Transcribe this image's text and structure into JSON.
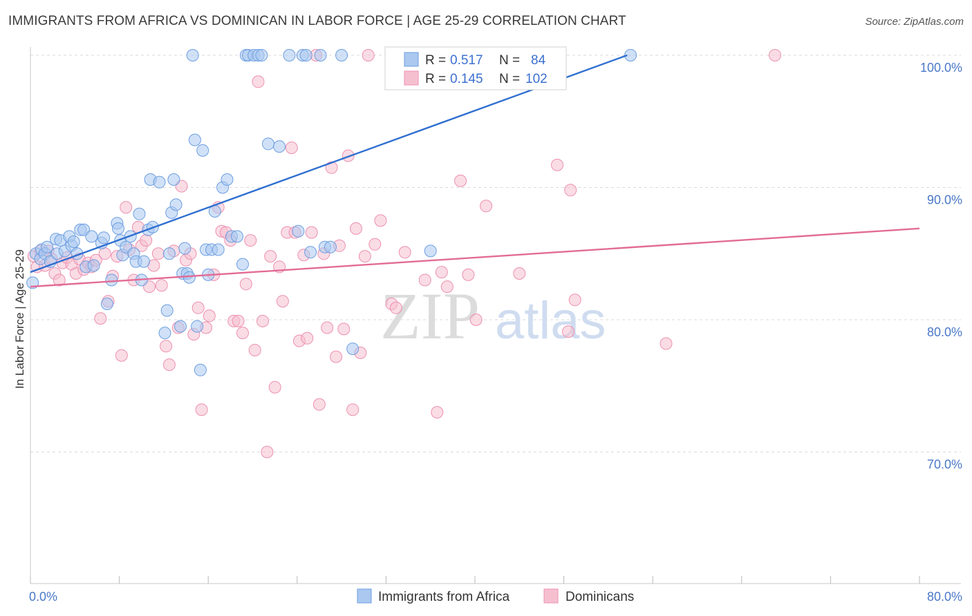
{
  "header": {
    "title": "IMMIGRANTS FROM AFRICA VS DOMINICAN IN LABOR FORCE | AGE 25-29 CORRELATION CHART",
    "source": "Source: ZipAtlas.com"
  },
  "watermark": {
    "zip": "ZIP",
    "atlas": "atlas"
  },
  "colors": {
    "blue_fill": "#aac8f0",
    "blue_stroke": "#6d9ee0",
    "blue_line": "#2f6fd0",
    "pink_fill": "#f6bfd0",
    "pink_stroke": "#ec90b0",
    "pink_line": "#e26c96",
    "tick_text": "#4a78c8",
    "grid": "#d9d9d9"
  },
  "legend": {
    "rows": [
      {
        "r_label": "R = ",
        "r_value": "0.517",
        "n_label": "N = ",
        "n_value": "84"
      },
      {
        "r_label": "R = ",
        "r_value": "0.145",
        "n_label": "N = ",
        "n_value": "102"
      }
    ]
  },
  "chart_data": {
    "type": "scatter",
    "xlabel": "",
    "ylabel": "In Labor Force | Age 25-29",
    "xlim": [
      0,
      80
    ],
    "ylim": [
      60.5,
      101.5
    ],
    "x_tick_labels": [
      "0.0%",
      "80.0%"
    ],
    "y_ticks": [
      70,
      80,
      90,
      100
    ],
    "y_tick_labels": [
      "70.0%",
      "80.0%",
      "90.0%",
      "100.0%"
    ],
    "grid": true,
    "legend_position": "top-center",
    "series": [
      {
        "name": "Immigrants from Africa",
        "color": "blue",
        "r": 0.517,
        "n": 84,
        "trend": {
          "x": [
            0,
            53.7
          ],
          "y": [
            83.6,
            100.0
          ]
        },
        "points": [
          [
            0.2,
            82.8
          ],
          [
            0.5,
            85
          ],
          [
            0.9,
            84.6
          ],
          [
            1.0,
            85.3
          ],
          [
            1.3,
            85.0
          ],
          [
            1.5,
            85.5
          ],
          [
            1.8,
            84.4
          ],
          [
            2.3,
            86.1
          ],
          [
            2.4,
            85.0
          ],
          [
            2.7,
            86.0
          ],
          [
            3.1,
            85.2
          ],
          [
            3.5,
            86.3
          ],
          [
            3.7,
            85.6
          ],
          [
            3.9,
            85.9
          ],
          [
            4.2,
            85.0
          ],
          [
            4.5,
            86.8
          ],
          [
            4.8,
            86.8
          ],
          [
            5.0,
            84.0
          ],
          [
            5.5,
            86.3
          ],
          [
            5.7,
            84.1
          ],
          [
            6.4,
            85.8
          ],
          [
            6.6,
            86.2
          ],
          [
            6.9,
            81.2
          ],
          [
            7.3,
            83.0
          ],
          [
            7.8,
            87.3
          ],
          [
            7.9,
            86.9
          ],
          [
            8.1,
            86.0
          ],
          [
            8.3,
            84.9
          ],
          [
            8.6,
            85.5
          ],
          [
            9.0,
            86.3
          ],
          [
            9.3,
            85.0
          ],
          [
            9.5,
            84.4
          ],
          [
            9.8,
            88.0
          ],
          [
            10.0,
            83.0
          ],
          [
            10.2,
            84.4
          ],
          [
            10.6,
            86.8
          ],
          [
            10.8,
            90.6
          ],
          [
            11.0,
            87.0
          ],
          [
            11.6,
            90.4
          ],
          [
            12.1,
            79.0
          ],
          [
            12.3,
            80.7
          ],
          [
            12.5,
            85.0
          ],
          [
            12.7,
            88.1
          ],
          [
            12.9,
            90.6
          ],
          [
            13.1,
            88.7
          ],
          [
            13.5,
            79.5
          ],
          [
            13.7,
            83.5
          ],
          [
            13.9,
            85.4
          ],
          [
            14.1,
            83.5
          ],
          [
            14.3,
            83.2
          ],
          [
            14.6,
            100
          ],
          [
            14.8,
            93.6
          ],
          [
            15.0,
            79.5
          ],
          [
            15.3,
            76.2
          ],
          [
            15.5,
            92.8
          ],
          [
            15.8,
            85.3
          ],
          [
            16.0,
            83.4
          ],
          [
            16.3,
            85.3
          ],
          [
            16.6,
            88.2
          ],
          [
            16.9,
            85.3
          ],
          [
            17.3,
            90.0
          ],
          [
            17.7,
            90.6
          ],
          [
            18.1,
            86.3
          ],
          [
            18.6,
            86.3
          ],
          [
            19.1,
            84.2
          ],
          [
            19.4,
            100
          ],
          [
            19.6,
            100
          ],
          [
            20.1,
            100
          ],
          [
            20.5,
            100
          ],
          [
            20.8,
            100
          ],
          [
            21.4,
            93.3
          ],
          [
            22.4,
            93.1
          ],
          [
            23.3,
            100
          ],
          [
            24.1,
            86.7
          ],
          [
            24.5,
            100
          ],
          [
            24.8,
            100
          ],
          [
            25.2,
            85.1
          ],
          [
            26.1,
            100
          ],
          [
            26.5,
            85.5
          ],
          [
            27.0,
            85.5
          ],
          [
            28.0,
            100
          ],
          [
            29.0,
            77.8
          ],
          [
            36.0,
            85.2
          ],
          [
            54.0,
            100
          ]
        ]
      },
      {
        "name": "Dominicans",
        "color": "pink",
        "r": 0.145,
        "n": 102,
        "trend": {
          "x": [
            0,
            80
          ],
          "y": [
            82.5,
            86.9
          ]
        },
        "points": [
          [
            0.3,
            84.8
          ],
          [
            0.6,
            84.0
          ],
          [
            0.9,
            85.2
          ],
          [
            1.3,
            84.1
          ],
          [
            1.6,
            85.2
          ],
          [
            1.9,
            84.6
          ],
          [
            2.2,
            83.5
          ],
          [
            2.6,
            83.0
          ],
          [
            2.9,
            84.3
          ],
          [
            3.3,
            84.7
          ],
          [
            3.7,
            84.2
          ],
          [
            4.1,
            83.5
          ],
          [
            4.4,
            84.6
          ],
          [
            4.8,
            83.8
          ],
          [
            5.2,
            84.3
          ],
          [
            5.5,
            84.0
          ],
          [
            5.9,
            84.5
          ],
          [
            6.3,
            80.1
          ],
          [
            6.7,
            85.0
          ],
          [
            7.0,
            81.4
          ],
          [
            7.4,
            83.3
          ],
          [
            7.8,
            84.8
          ],
          [
            8.2,
            77.3
          ],
          [
            8.6,
            88.5
          ],
          [
            8.9,
            85.3
          ],
          [
            9.3,
            83.0
          ],
          [
            9.7,
            87.0
          ],
          [
            10.0,
            85.6
          ],
          [
            10.4,
            86.0
          ],
          [
            10.7,
            82.5
          ],
          [
            11.1,
            84.1
          ],
          [
            11.5,
            85.0
          ],
          [
            11.8,
            82.6
          ],
          [
            12.2,
            78.0
          ],
          [
            12.5,
            76.6
          ],
          [
            12.9,
            85.2
          ],
          [
            13.3,
            79.4
          ],
          [
            13.6,
            90.1
          ],
          [
            14.0,
            84.5
          ],
          [
            14.4,
            85.0
          ],
          [
            14.7,
            78.9
          ],
          [
            15.1,
            80.9
          ],
          [
            15.4,
            73.2
          ],
          [
            15.8,
            79.4
          ],
          [
            16.1,
            80.3
          ],
          [
            16.5,
            83.4
          ],
          [
            16.9,
            88.5
          ],
          [
            17.2,
            86.7
          ],
          [
            17.6,
            86.6
          ],
          [
            18.0,
            86.0
          ],
          [
            18.3,
            79.9
          ],
          [
            18.7,
            79.9
          ],
          [
            19.1,
            79.0
          ],
          [
            19.4,
            82.7
          ],
          [
            19.8,
            86.0
          ],
          [
            20.2,
            77.7
          ],
          [
            20.5,
            98.0
          ],
          [
            20.9,
            79.9
          ],
          [
            21.3,
            70.0
          ],
          [
            21.6,
            84.8
          ],
          [
            22.0,
            74.9
          ],
          [
            22.4,
            84.0
          ],
          [
            22.7,
            81.4
          ],
          [
            23.1,
            86.6
          ],
          [
            23.5,
            93.0
          ],
          [
            23.8,
            86.6
          ],
          [
            24.2,
            78.4
          ],
          [
            24.6,
            84.9
          ],
          [
            24.9,
            78.6
          ],
          [
            25.3,
            86.6
          ],
          [
            25.7,
            100
          ],
          [
            26.0,
            73.6
          ],
          [
            26.4,
            85.0
          ],
          [
            26.7,
            79.4
          ],
          [
            27.1,
            91.5
          ],
          [
            27.5,
            77.2
          ],
          [
            27.8,
            85.6
          ],
          [
            28.2,
            79.3
          ],
          [
            28.6,
            92.4
          ],
          [
            29.0,
            73.2
          ],
          [
            29.3,
            86.9
          ],
          [
            29.7,
            77.5
          ],
          [
            30.1,
            84.8
          ],
          [
            30.4,
            100
          ],
          [
            31.0,
            85.7
          ],
          [
            31.5,
            87.5
          ],
          [
            32.5,
            81.2
          ],
          [
            32.9,
            80.9
          ],
          [
            33.7,
            85.1
          ],
          [
            35.5,
            83.0
          ],
          [
            36.6,
            73.0
          ],
          [
            37.0,
            83.6
          ],
          [
            37.5,
            82.5
          ],
          [
            38.7,
            90.5
          ],
          [
            39.4,
            83.4
          ],
          [
            40.1,
            80.0
          ],
          [
            41.0,
            88.6
          ],
          [
            44.0,
            83.5
          ],
          [
            47.4,
            91.7
          ],
          [
            48.4,
            79.1
          ],
          [
            48.6,
            89.8
          ],
          [
            49.0,
            81.5
          ],
          [
            57.2,
            78.2
          ],
          [
            67.0,
            100
          ]
        ]
      }
    ]
  }
}
